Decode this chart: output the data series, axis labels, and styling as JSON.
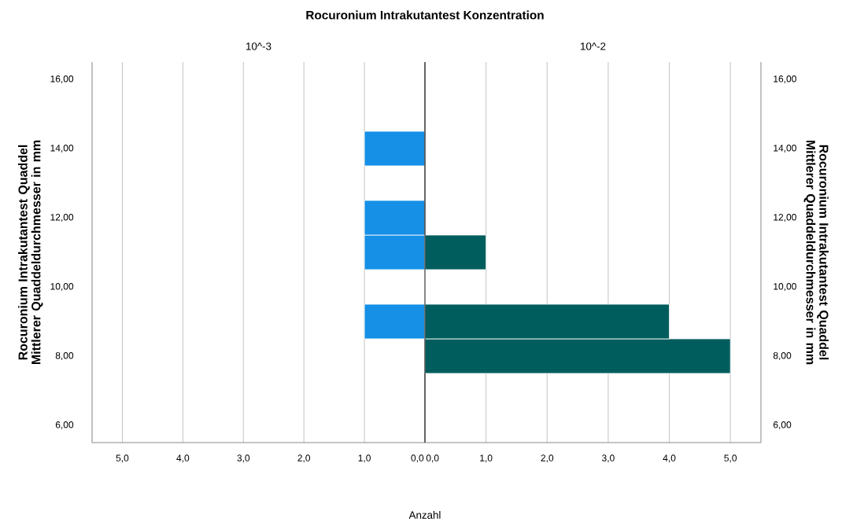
{
  "chart_data": [
    {
      "type": "histogram",
      "orientation": "horizontal",
      "title": "Rocuronium Intrakutantest Konzentration",
      "subtitle": "10^-3",
      "ylabel": "Rocuronium Intrakutantest Quaddel Mittlerer Quaddeldurchmesser in mm",
      "bins": [
        8.5,
        9.5,
        10.5,
        11.5,
        12.5,
        13.5,
        14.5
      ],
      "values": [
        1,
        0,
        1,
        1,
        0,
        1
      ],
      "color": "#1590e6",
      "xlim": [
        5.5,
        0
      ],
      "xticks": [
        {
          "value": 5,
          "label": "5,0"
        },
        {
          "value": 4,
          "label": "4,0"
        },
        {
          "value": 3,
          "label": "3,0"
        },
        {
          "value": 2,
          "label": "2,0"
        },
        {
          "value": 1,
          "label": "1,0"
        },
        {
          "value": 0,
          "label": "0,0"
        }
      ],
      "ylim": [
        5.5,
        16.5
      ],
      "yticks": [
        {
          "value": 6,
          "label": "6,00"
        },
        {
          "value": 8,
          "label": "8,00"
        },
        {
          "value": 10,
          "label": "10,00"
        },
        {
          "value": 12,
          "label": "12,00"
        },
        {
          "value": 14,
          "label": "14,00"
        },
        {
          "value": 16,
          "label": "16,00"
        }
      ],
      "grid": "x"
    },
    {
      "type": "histogram",
      "orientation": "horizontal",
      "subtitle": "10^-2",
      "xlabel": "Anzahl",
      "ylabel": "Rocuronium Intrakutantest Quaddel Mittlerer Quaddeldurchmesser in mm",
      "bins": [
        7.5,
        8.5,
        9.5,
        10.5,
        11.5
      ],
      "values": [
        5,
        4,
        0,
        1
      ],
      "color": "#005d5d",
      "xlim": [
        0,
        5.5
      ],
      "xticks": [
        {
          "value": 0,
          "label": "0,0"
        },
        {
          "value": 1,
          "label": "1,0"
        },
        {
          "value": 2,
          "label": "2,0"
        },
        {
          "value": 3,
          "label": "3,0"
        },
        {
          "value": 4,
          "label": "4,0"
        },
        {
          "value": 5,
          "label": "5,0"
        }
      ],
      "ylim": [
        5.5,
        16.5
      ],
      "yticks": [
        {
          "value": 6,
          "label": "6,00"
        },
        {
          "value": 8,
          "label": "8,00"
        },
        {
          "value": 10,
          "label": "10,00"
        },
        {
          "value": 12,
          "label": "12,00"
        },
        {
          "value": 14,
          "label": "14,00"
        },
        {
          "value": 16,
          "label": "16,00"
        }
      ],
      "grid": "x"
    }
  ]
}
